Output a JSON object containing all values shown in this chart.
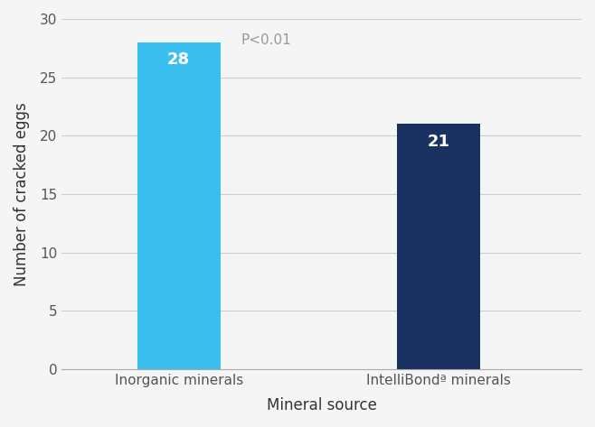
{
  "categories": [
    "Inorganic minerals",
    "IntelliBondª minerals"
  ],
  "values": [
    28,
    21
  ],
  "bar_colors": [
    "#3bbfef",
    "#1a3260"
  ],
  "bar_labels": [
    "28",
    "21"
  ],
  "label_color": "#ffffff",
  "annotation_text": "P<0.01",
  "annotation_color": "#999999",
  "xlabel": "Mineral source",
  "ylabel": "Number of cracked eggs",
  "ylim": [
    0,
    30
  ],
  "yticks": [
    0,
    5,
    10,
    15,
    20,
    25,
    30
  ],
  "grid_color": "#cccccc",
  "background_color": "#f5f5f5",
  "bar_width": 0.32,
  "label_fontsize": 13,
  "axis_label_fontsize": 12,
  "tick_fontsize": 11,
  "annotation_fontsize": 11
}
